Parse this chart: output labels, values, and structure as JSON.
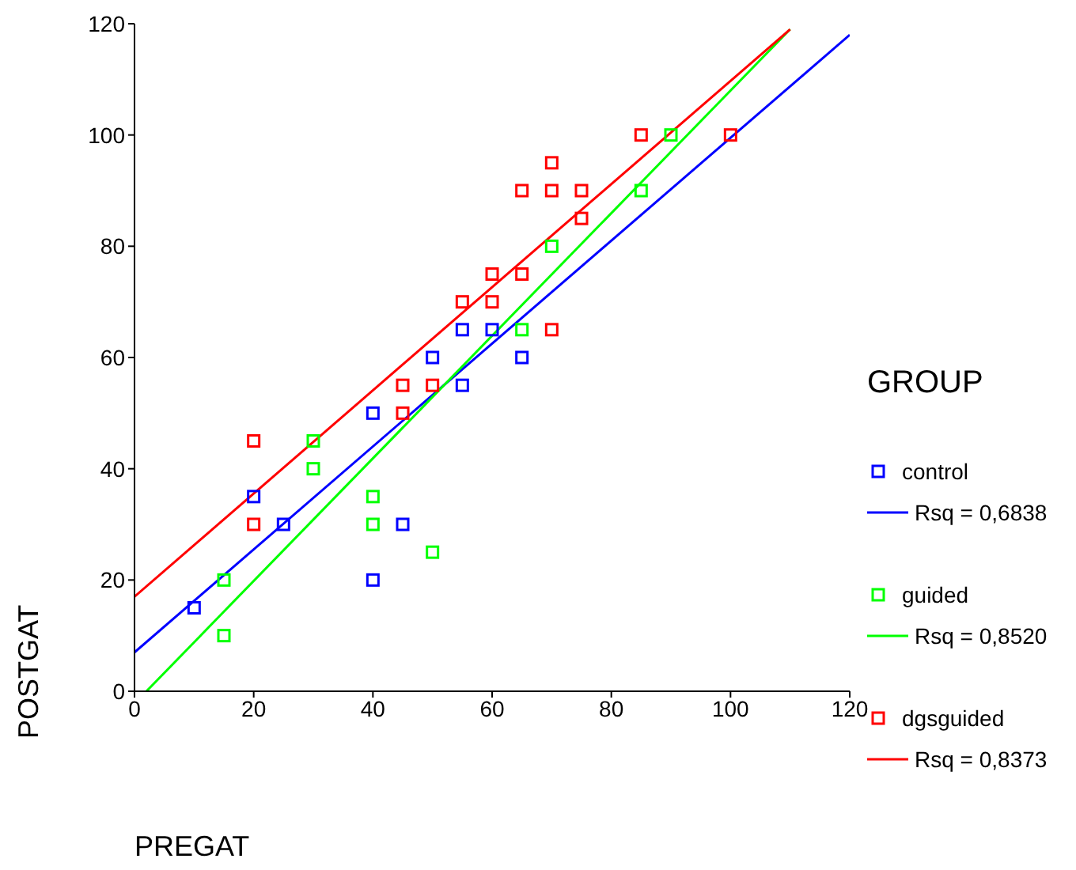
{
  "chart_data": {
    "type": "scatter",
    "xlabel": "PREGAT",
    "ylabel": "POSTGAT",
    "legend_title": "GROUP",
    "legend": "right",
    "marker": "square",
    "grid": false,
    "xlim": [
      0,
      120
    ],
    "xticks": [
      0,
      20,
      40,
      60,
      80,
      100,
      120
    ],
    "ylim": [
      0,
      120
    ],
    "yticks": [
      0,
      20,
      40,
      60,
      80,
      100,
      120
    ],
    "series": [
      {
        "type": "line",
        "marker": "none",
        "name": "Rsq = 0,6838",
        "color": "#0000ff",
        "x": [
          0,
          120
        ],
        "values": [
          7,
          118
        ]
      },
      {
        "name": "control",
        "color": "#0000ff",
        "x": [
          10,
          20,
          25,
          40,
          40,
          45,
          50,
          55,
          60,
          55,
          65
        ],
        "values": [
          15,
          35,
          30,
          50,
          20,
          30,
          60,
          65,
          65,
          55,
          60
        ]
      },
      {
        "type": "line",
        "marker": "none",
        "name": "Rsq = 0,8520",
        "color": "#00ff00",
        "x": [
          2,
          110
        ],
        "values": [
          0,
          119
        ]
      },
      {
        "name": "guided",
        "color": "#00ff00",
        "x": [
          15,
          15,
          30,
          30,
          40,
          40,
          50,
          65,
          70,
          85,
          90
        ],
        "values": [
          20,
          10,
          45,
          40,
          35,
          30,
          25,
          65,
          80,
          90,
          100
        ]
      },
      {
        "type": "line",
        "marker": "none",
        "name": "Rsq = 0,8373",
        "color": "#ff0000",
        "x": [
          0,
          110
        ],
        "values": [
          17,
          119
        ]
      },
      {
        "name": "dgsguided",
        "color": "#ff0000",
        "x": [
          20,
          20,
          45,
          50,
          45,
          55,
          60,
          60,
          65,
          65,
          70,
          75,
          70,
          75,
          85,
          100,
          70
        ],
        "values": [
          45,
          30,
          55,
          55,
          50,
          70,
          70,
          75,
          75,
          90,
          90,
          90,
          95,
          85,
          100,
          100,
          65
        ]
      }
    ]
  }
}
